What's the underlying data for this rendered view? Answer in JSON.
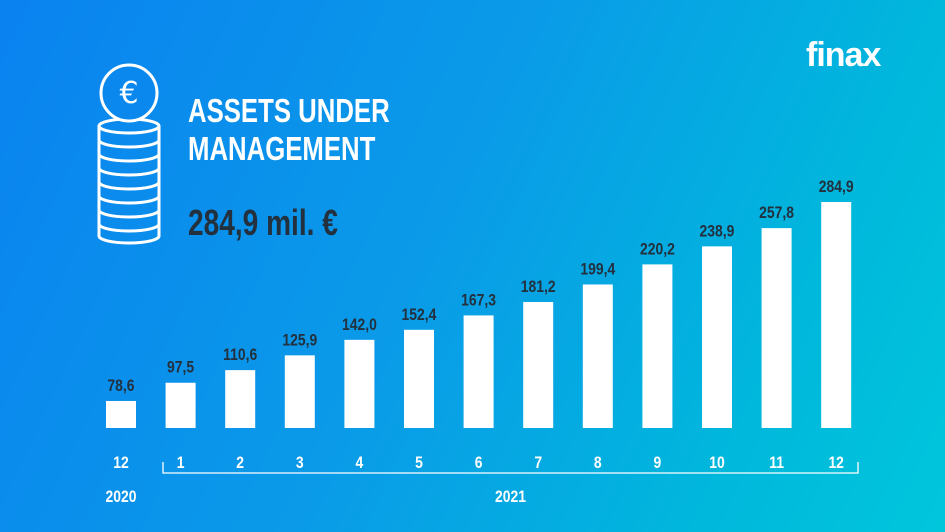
{
  "logo": "finax",
  "header": {
    "title_line1": "ASSETS UNDER",
    "title_line2": "MANAGEMENT",
    "total": "284,9 mil. €",
    "icon": "euro-coin-stack-icon"
  },
  "chart_data": {
    "type": "bar",
    "categories": [
      "12",
      "1",
      "2",
      "3",
      "4",
      "5",
      "6",
      "7",
      "8",
      "9",
      "10",
      "11",
      "12"
    ],
    "values": [
      78.6,
      97.5,
      110.6,
      125.9,
      142.0,
      152.4,
      167.3,
      181.2,
      199.4,
      220.2,
      238.9,
      257.8,
      284.9
    ],
    "data_labels": [
      "78,6",
      "97,5",
      "110,6",
      "125,9",
      "142,0",
      "152,4",
      "167,3",
      "181,2",
      "199,4",
      "220,2",
      "238,9",
      "257,8",
      "284,9"
    ],
    "year_groups": [
      {
        "label": "2020",
        "months": [
          "12"
        ]
      },
      {
        "label": "2021",
        "months": [
          "1",
          "2",
          "3",
          "4",
          "5",
          "6",
          "7",
          "8",
          "9",
          "10",
          "11",
          "12"
        ]
      }
    ],
    "bar_color": "#ffffff",
    "label_color": "#23303d"
  }
}
